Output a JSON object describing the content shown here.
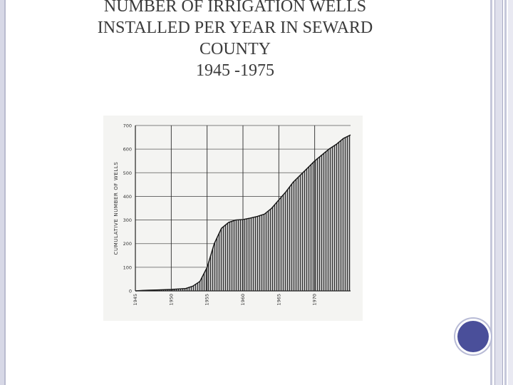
{
  "slide": {
    "title_lines": [
      "NUMBER OF IRRIGATION WELLS",
      "INSTALLED PER YEAR IN SEWARD",
      "COUNTY",
      "1945 -1975"
    ],
    "accent_color": "#4a4f9a"
  },
  "chart_data": {
    "type": "area",
    "ylabel": "CUMULATIVE NUMBER OF WELLS",
    "xlabel": "",
    "title": "",
    "ylim": [
      0,
      700
    ],
    "xlim": [
      1945,
      1975
    ],
    "yticks": [
      0,
      100,
      200,
      300,
      400,
      500,
      600,
      700
    ],
    "xticks": [
      {
        "value": 1945,
        "label": "1945"
      },
      {
        "value": 1950,
        "label": "1950"
      },
      {
        "value": 1955,
        "label": "1955"
      },
      {
        "value": 1960,
        "label": "1960"
      },
      {
        "value": 1965,
        "label": "1965"
      },
      {
        "value": 1970,
        "label": "1970"
      }
    ],
    "grid": true,
    "series": [
      {
        "x": [
          1945,
          1946,
          1947,
          1948,
          1949,
          1950,
          1951,
          1952,
          1953,
          1954,
          1955,
          1956,
          1957,
          1958,
          1959,
          1960,
          1961,
          1962,
          1963,
          1964,
          1965,
          1966,
          1967,
          1968,
          1969,
          1970,
          1971,
          1972,
          1973,
          1974,
          1975
        ],
        "y": [
          0,
          2,
          3,
          4,
          5,
          6,
          8,
          10,
          20,
          40,
          100,
          200,
          265,
          290,
          300,
          302,
          308,
          315,
          325,
          350,
          385,
          420,
          460,
          490,
          520,
          550,
          575,
          600,
          620,
          645,
          660
        ]
      }
    ]
  }
}
